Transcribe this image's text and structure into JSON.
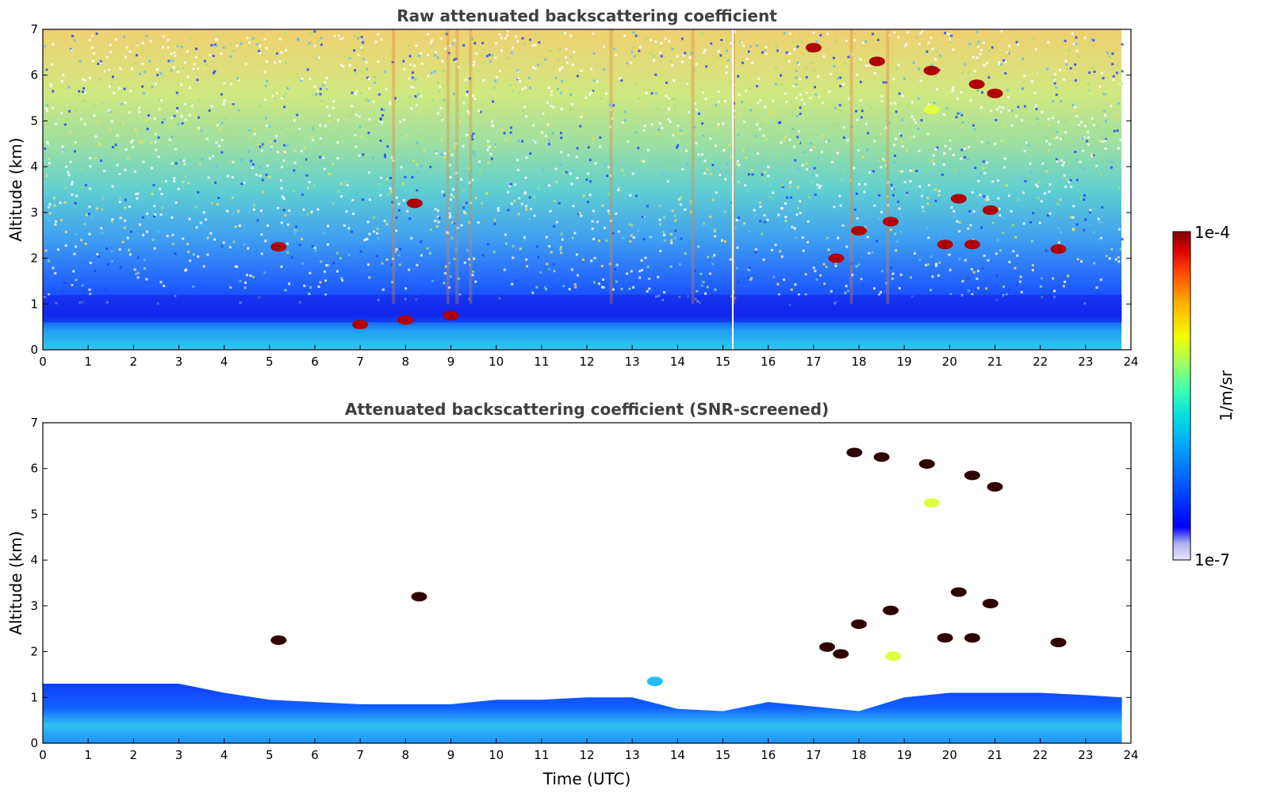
{
  "chart_data": [
    {
      "type": "heatmap",
      "title": "Raw attenuated backscattering coefficient",
      "xlabel": "",
      "ylabel": "Altitude (km)",
      "xlim": [
        0,
        24
      ],
      "ylim": [
        0,
        7
      ],
      "xticks": [
        0,
        1,
        2,
        3,
        4,
        5,
        6,
        7,
        8,
        9,
        10,
        11,
        12,
        13,
        14,
        15,
        16,
        17,
        18,
        19,
        20,
        21,
        22,
        23,
        24
      ],
      "yticks": [
        0,
        1,
        2,
        3,
        4,
        5,
        6,
        7
      ],
      "features": [
        {
          "t": 5.2,
          "z": 2.25,
          "level": "high"
        },
        {
          "t": 8.2,
          "z": 3.2,
          "level": "high"
        },
        {
          "t": 7.0,
          "z": 0.55,
          "level": "high"
        },
        {
          "t": 8.0,
          "z": 0.65,
          "level": "high"
        },
        {
          "t": 9.0,
          "z": 0.75,
          "level": "high"
        },
        {
          "t": 17.5,
          "z": 2.0,
          "level": "high"
        },
        {
          "t": 18.0,
          "z": 2.6,
          "level": "high"
        },
        {
          "t": 18.7,
          "z": 2.8,
          "level": "high"
        },
        {
          "t": 19.9,
          "z": 2.3,
          "level": "high"
        },
        {
          "t": 20.2,
          "z": 3.3,
          "level": "high"
        },
        {
          "t": 20.5,
          "z": 2.3,
          "level": "high"
        },
        {
          "t": 20.9,
          "z": 3.05,
          "level": "high"
        },
        {
          "t": 22.4,
          "z": 2.2,
          "level": "high"
        },
        {
          "t": 19.6,
          "z": 6.1,
          "level": "high"
        },
        {
          "t": 20.6,
          "z": 5.8,
          "level": "high"
        },
        {
          "t": 21.0,
          "z": 5.6,
          "level": "high"
        },
        {
          "t": 17.0,
          "z": 6.6,
          "level": "high"
        },
        {
          "t": 18.4,
          "z": 6.3,
          "level": "high"
        },
        {
          "t": 19.6,
          "z": 5.25,
          "level": "mid"
        }
      ]
    },
    {
      "type": "heatmap",
      "title": "Attenuated backscattering coefficient (SNR-screened)",
      "xlabel": "Time (UTC)",
      "ylabel": "Altitude (km)",
      "xlim": [
        0,
        24
      ],
      "ylim": [
        0,
        7
      ],
      "xticks": [
        0,
        1,
        2,
        3,
        4,
        5,
        6,
        7,
        8,
        9,
        10,
        11,
        12,
        13,
        14,
        15,
        16,
        17,
        18,
        19,
        20,
        21,
        22,
        23,
        24
      ],
      "yticks": [
        0,
        1,
        2,
        3,
        4,
        5,
        6,
        7
      ],
      "boundary_layer_top": [
        {
          "t": 0,
          "z": 1.3
        },
        {
          "t": 2,
          "z": 1.3
        },
        {
          "t": 3,
          "z": 1.3
        },
        {
          "t": 4,
          "z": 1.1
        },
        {
          "t": 5,
          "z": 0.95
        },
        {
          "t": 6,
          "z": 0.9
        },
        {
          "t": 7,
          "z": 0.85
        },
        {
          "t": 8,
          "z": 0.85
        },
        {
          "t": 9,
          "z": 0.85
        },
        {
          "t": 10,
          "z": 0.95
        },
        {
          "t": 11,
          "z": 0.95
        },
        {
          "t": 12,
          "z": 1.0
        },
        {
          "t": 13,
          "z": 1.0
        },
        {
          "t": 14,
          "z": 0.75
        },
        {
          "t": 15,
          "z": 0.7
        },
        {
          "t": 16,
          "z": 0.9
        },
        {
          "t": 17,
          "z": 0.8
        },
        {
          "t": 18,
          "z": 0.7
        },
        {
          "t": 19,
          "z": 1.0
        },
        {
          "t": 20,
          "z": 1.1
        },
        {
          "t": 21,
          "z": 1.1
        },
        {
          "t": 22,
          "z": 1.1
        },
        {
          "t": 23,
          "z": 1.05
        },
        {
          "t": 23.8,
          "z": 1.0
        }
      ],
      "features": [
        {
          "t": 5.2,
          "z": 2.25,
          "level": "high"
        },
        {
          "t": 8.3,
          "z": 3.2,
          "level": "high"
        },
        {
          "t": 17.3,
          "z": 2.1,
          "level": "high"
        },
        {
          "t": 17.6,
          "z": 1.95,
          "level": "high"
        },
        {
          "t": 18.0,
          "z": 2.6,
          "level": "high"
        },
        {
          "t": 18.7,
          "z": 2.9,
          "level": "high"
        },
        {
          "t": 18.75,
          "z": 1.9,
          "level": "mid"
        },
        {
          "t": 19.9,
          "z": 2.3,
          "level": "high"
        },
        {
          "t": 20.2,
          "z": 3.3,
          "level": "high"
        },
        {
          "t": 20.5,
          "z": 2.3,
          "level": "high"
        },
        {
          "t": 20.9,
          "z": 3.05,
          "level": "high"
        },
        {
          "t": 22.4,
          "z": 2.2,
          "level": "high"
        },
        {
          "t": 17.9,
          "z": 6.35,
          "level": "high"
        },
        {
          "t": 18.5,
          "z": 6.25,
          "level": "high"
        },
        {
          "t": 19.5,
          "z": 6.1,
          "level": "high"
        },
        {
          "t": 20.5,
          "z": 5.85,
          "level": "high"
        },
        {
          "t": 21.0,
          "z": 5.6,
          "level": "high"
        },
        {
          "t": 19.6,
          "z": 5.25,
          "level": "mid"
        },
        {
          "t": 13.5,
          "z": 1.35,
          "level": "low"
        }
      ]
    }
  ],
  "colorbar": {
    "label": "1/m/sr",
    "max_label": "1e-4",
    "min_label": "1e-7",
    "scale": "log",
    "colormap": "jet",
    "colors": [
      "#e8e8f8",
      "#b0b0f0",
      "#0000ff",
      "#0050ff",
      "#00a0ff",
      "#00e0e0",
      "#40ffb0",
      "#a0ff60",
      "#f0ff00",
      "#ffb000",
      "#ff5000",
      "#e00000",
      "#800000"
    ]
  }
}
